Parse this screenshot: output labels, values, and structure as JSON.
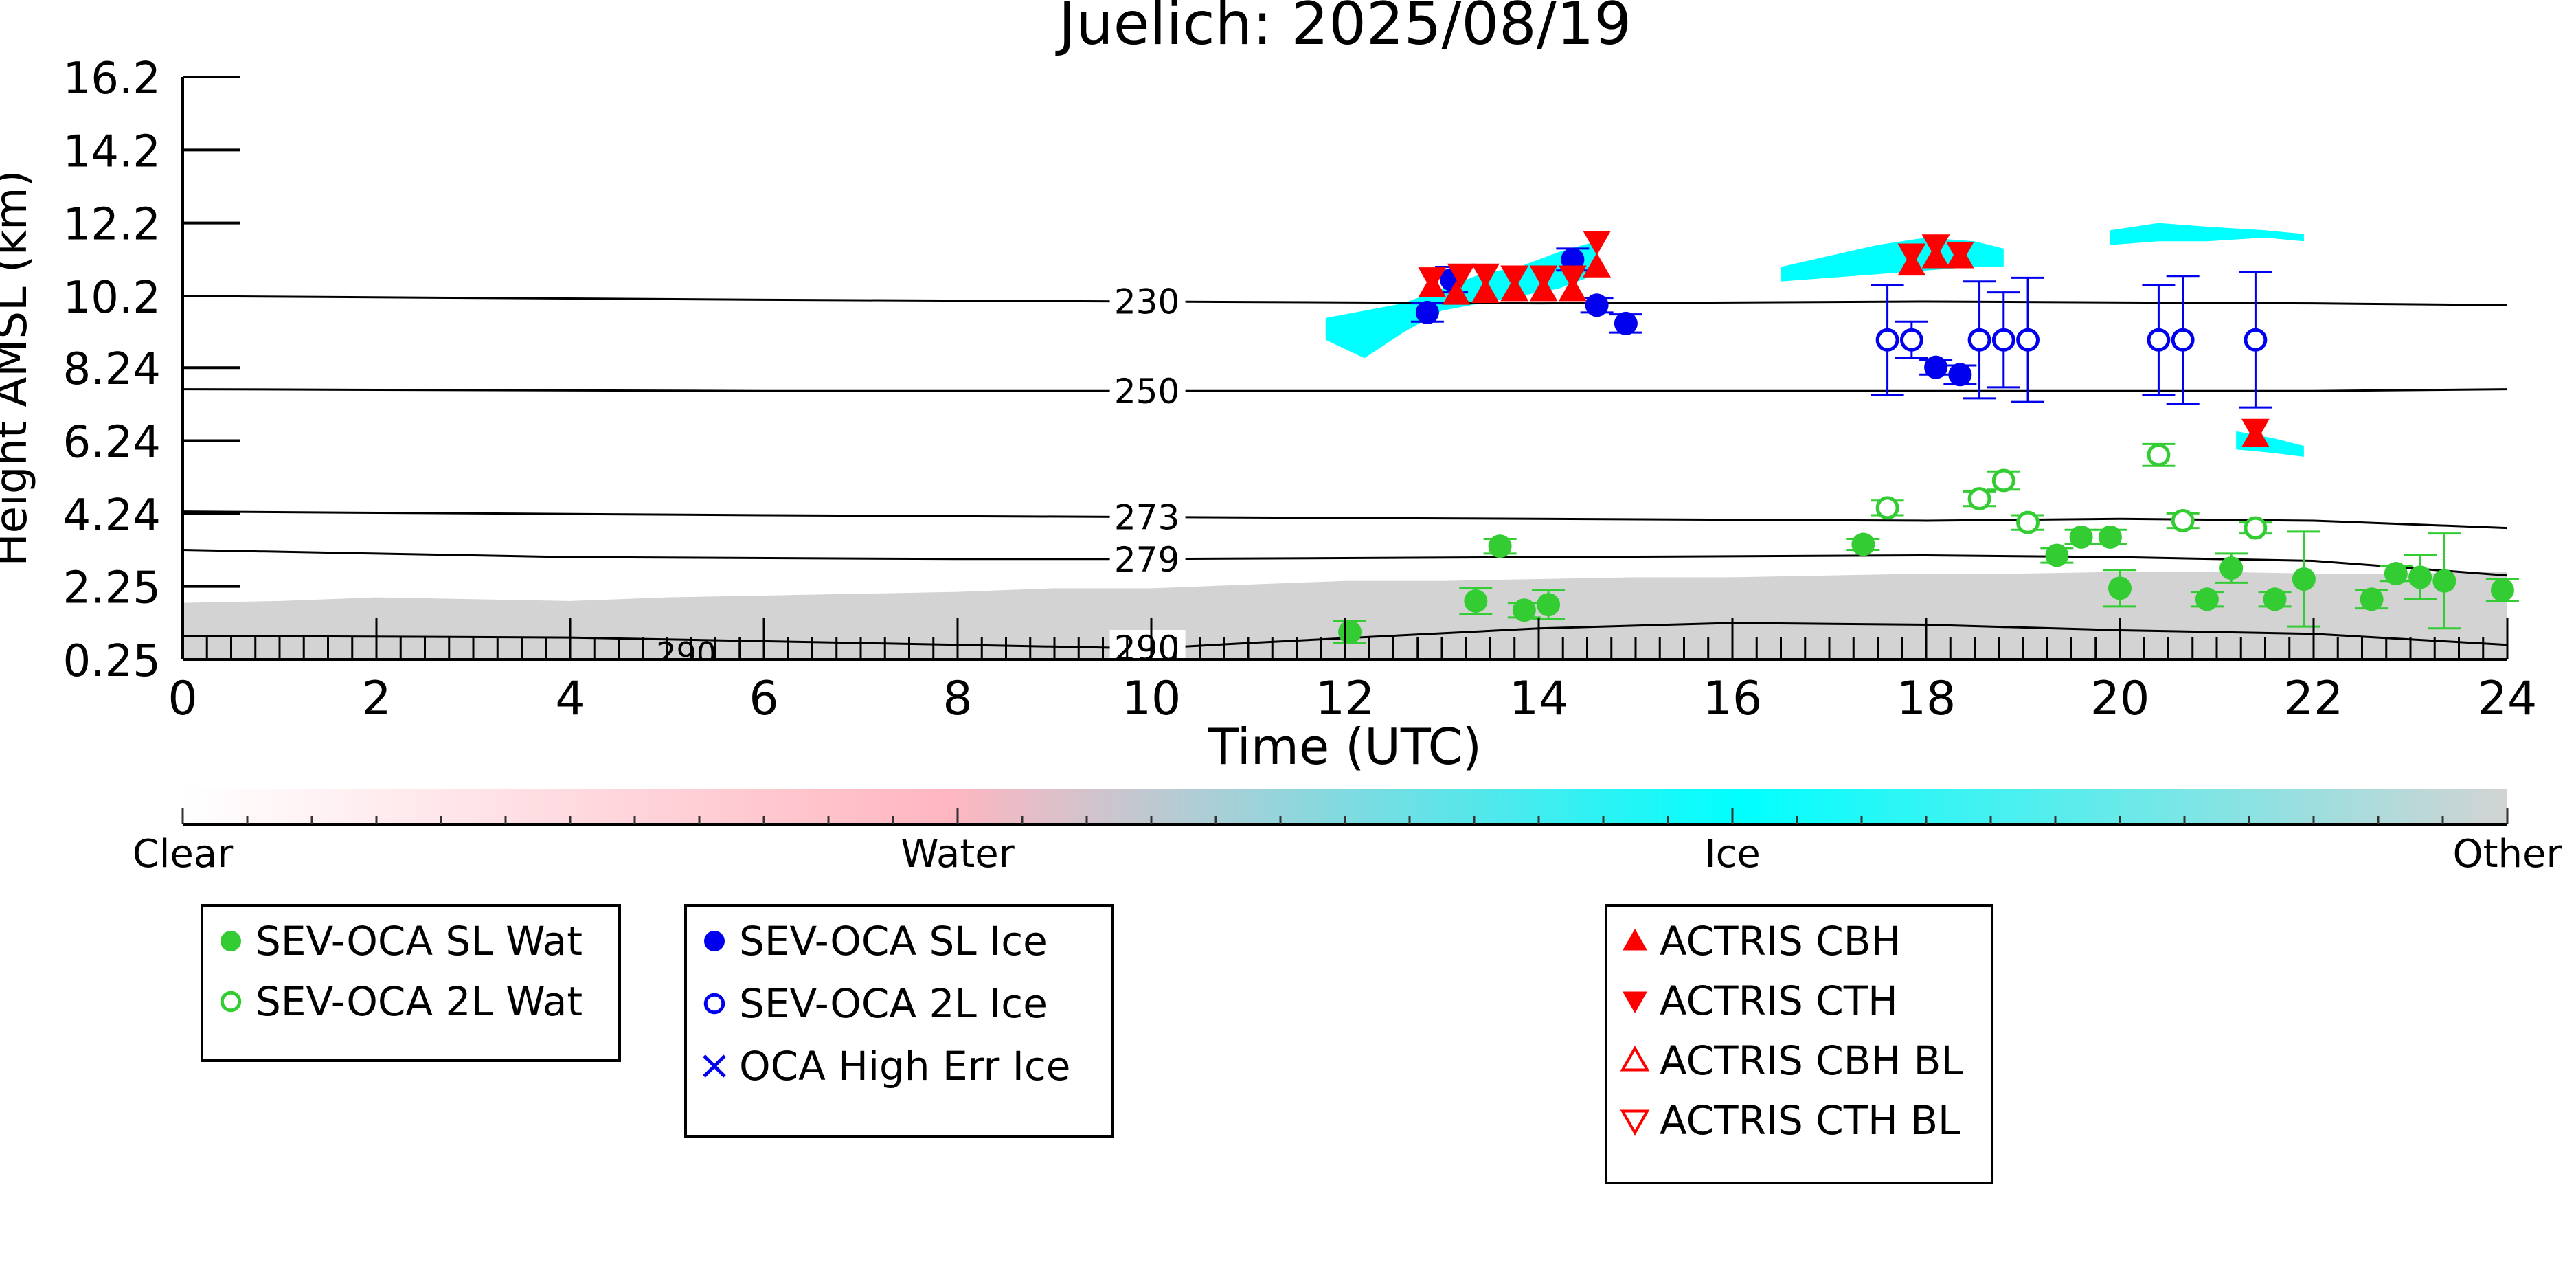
{
  "chart_data": {
    "type": "scatter",
    "title": "Juelich: 2025/08/19",
    "xlabel": "Time (UTC)",
    "ylabel": "Height AMSL (km)",
    "xlim": [
      0,
      24
    ],
    "ylim": [
      0.25,
      16.2
    ],
    "x_ticks": [
      "0",
      "2",
      "4",
      "6",
      "8",
      "10",
      "12",
      "14",
      "16",
      "18",
      "20",
      "22",
      "24"
    ],
    "x_tick_values": [
      0,
      2,
      4,
      6,
      8,
      10,
      12,
      14,
      16,
      18,
      20,
      22,
      24
    ],
    "y_ticks": [
      "16.2",
      "14.2",
      "12.2",
      "10.2",
      "8.24",
      "6.24",
      "4.24",
      "2.25",
      "0.25"
    ],
    "y_tick_values": [
      16.2,
      14.2,
      12.2,
      10.2,
      8.24,
      6.24,
      4.24,
      2.25,
      0.25
    ],
    "grid": false,
    "contours": [
      {
        "label": "230",
        "label_x": 9.6,
        "x": [
          0,
          6,
          10,
          14,
          18,
          22,
          24
        ],
        "y": [
          10.2,
          10.1,
          10.05,
          10.0,
          10.05,
          10.0,
          9.95
        ]
      },
      {
        "label": "250",
        "label_x": 9.6,
        "x": [
          0,
          6,
          10,
          14,
          18,
          22,
          24
        ],
        "y": [
          7.65,
          7.6,
          7.6,
          7.6,
          7.6,
          7.6,
          7.65
        ]
      },
      {
        "label": "273",
        "label_x": 9.6,
        "x": [
          0,
          6,
          10,
          14,
          18,
          20,
          22,
          24
        ],
        "y": [
          4.3,
          4.2,
          4.15,
          4.1,
          4.05,
          4.1,
          4.05,
          3.85
        ]
      },
      {
        "label": "279",
        "label_x": 9.6,
        "x": [
          0,
          4,
          8,
          10,
          14,
          18,
          20,
          22,
          24
        ],
        "y": [
          3.25,
          3.05,
          3.0,
          3.0,
          3.05,
          3.1,
          3.05,
          2.95,
          2.55
        ]
      },
      {
        "label": "290",
        "label_x": 9.6,
        "x": [
          0,
          4,
          8,
          10,
          11,
          14,
          16,
          18,
          20,
          22,
          24
        ],
        "y": [
          0.9,
          0.85,
          0.65,
          0.55,
          0.7,
          1.1,
          1.25,
          1.2,
          1.05,
          0.95,
          0.65
        ]
      }
    ],
    "contour_fragment_label": "290",
    "classification_fields": [
      {
        "class": "Other",
        "x": [
          0,
          1,
          2,
          3,
          4,
          5,
          6,
          7,
          8,
          9,
          10,
          11,
          12,
          13,
          14,
          15,
          16,
          17,
          18,
          19,
          20,
          21,
          22,
          23,
          24
        ],
        "top": [
          1.8,
          1.85,
          1.95,
          1.9,
          1.85,
          1.95,
          2.0,
          2.05,
          2.1,
          2.2,
          2.2,
          2.3,
          2.4,
          2.4,
          2.45,
          2.5,
          2.5,
          2.55,
          2.6,
          2.6,
          2.65,
          2.65,
          2.6,
          2.6,
          2.65
        ]
      },
      {
        "class": "Ice",
        "x": [
          11.8,
          12.2,
          12.6,
          13.0,
          13.4,
          13.8,
          14.2,
          14.6
        ],
        "top": [
          9.6,
          9.8,
          10.0,
          10.4,
          10.8,
          11.0,
          11.4,
          11.7
        ],
        "bottom": [
          9.0,
          8.5,
          9.2,
          9.8,
          10.0,
          10.2,
          10.4,
          10.8
        ]
      },
      {
        "class": "Ice",
        "x": [
          16.5,
          17.0,
          17.5,
          18.0,
          18.5,
          18.8
        ],
        "top": [
          11.0,
          11.3,
          11.6,
          11.8,
          11.7,
          11.5
        ],
        "bottom": [
          10.6,
          10.7,
          10.8,
          10.9,
          11.0,
          11.0
        ]
      },
      {
        "class": "Ice",
        "x": [
          19.9,
          20.4,
          20.9,
          21.5,
          21.9
        ],
        "top": [
          12.0,
          12.2,
          12.1,
          12.0,
          11.9
        ],
        "bottom": [
          11.6,
          11.7,
          11.7,
          11.8,
          11.7
        ]
      },
      {
        "class": "Ice",
        "x": [
          21.2,
          21.6,
          21.9
        ],
        "top": [
          6.5,
          6.3,
          6.1
        ],
        "bottom": [
          6.0,
          5.9,
          5.8
        ]
      }
    ],
    "colorbar": {
      "labels": [
        "Clear",
        "Water",
        "Ice",
        "Other"
      ],
      "stops": [
        {
          "pos": 0.0,
          "color": "#ffffff"
        },
        {
          "pos": 0.33,
          "color": "#ffb6c1"
        },
        {
          "pos": 0.67,
          "color": "#00ffff"
        },
        {
          "pos": 1.0,
          "color": "#d3d3d3"
        }
      ]
    },
    "legends": [
      {
        "entries": [
          {
            "label": "SEV-OCA SL Wat",
            "marker": "circle-filled",
            "color": "#33cc33"
          },
          {
            "label": "SEV-OCA 2L Wat",
            "marker": "circle-open",
            "color": "#33cc33"
          }
        ]
      },
      {
        "entries": [
          {
            "label": "SEV-OCA SL Ice",
            "marker": "circle-filled",
            "color": "#0000ee"
          },
          {
            "label": "SEV-OCA 2L Ice",
            "marker": "circle-open",
            "color": "#0000ee"
          },
          {
            "label": "OCA High Err Ice",
            "marker": "x",
            "color": "#0000ee"
          }
        ]
      },
      {
        "entries": [
          {
            "label": "ACTRIS CBH",
            "marker": "triangle-up-filled",
            "color": "#ff0000"
          },
          {
            "label": "ACTRIS CTH",
            "marker": "triangle-down-filled",
            "color": "#ff0000"
          },
          {
            "label": "ACTRIS CBH BL",
            "marker": "triangle-up-open",
            "color": "#ff0000"
          },
          {
            "label": "ACTRIS CTH BL",
            "marker": "triangle-down-open",
            "color": "#ff0000"
          }
        ]
      }
    ],
    "series": [
      {
        "name": "SEV-OCA SL Wat",
        "marker": "circle-filled",
        "color": "#33cc33",
        "points": [
          {
            "x": 12.05,
            "y": 1.0,
            "err": 0.3
          },
          {
            "x": 13.35,
            "y": 1.85,
            "err": 0.35
          },
          {
            "x": 13.6,
            "y": 3.35,
            "err": 0.2
          },
          {
            "x": 13.85,
            "y": 1.6,
            "err": 0.2
          },
          {
            "x": 14.1,
            "y": 1.75,
            "err": 0.4
          },
          {
            "x": 17.35,
            "y": 3.4,
            "err": 0.15
          },
          {
            "x": 19.35,
            "y": 3.1,
            "err": 0.2
          },
          {
            "x": 19.6,
            "y": 3.6,
            "err": 0.2
          },
          {
            "x": 19.9,
            "y": 3.6,
            "err": 0.2
          },
          {
            "x": 20.0,
            "y": 2.2,
            "err": 0.5
          },
          {
            "x": 20.9,
            "y": 1.9,
            "err": 0.2
          },
          {
            "x": 21.15,
            "y": 2.75,
            "err": 0.4
          },
          {
            "x": 21.6,
            "y": 1.9,
            "err": 0.2
          },
          {
            "x": 21.9,
            "y": 2.45,
            "err": 1.3
          },
          {
            "x": 22.6,
            "y": 1.9,
            "err": 0.25
          },
          {
            "x": 22.85,
            "y": 2.6,
            "err": 0.2
          },
          {
            "x": 23.1,
            "y": 2.5,
            "err": 0.6
          },
          {
            "x": 23.35,
            "y": 2.4,
            "err": 1.3
          },
          {
            "x": 23.95,
            "y": 2.15,
            "err": 0.3
          }
        ]
      },
      {
        "name": "SEV-OCA 2L Wat",
        "marker": "circle-open",
        "color": "#33cc33",
        "points": [
          {
            "x": 17.6,
            "y": 4.4,
            "err": 0.2
          },
          {
            "x": 18.55,
            "y": 4.65,
            "err": 0.2
          },
          {
            "x": 18.8,
            "y": 5.15,
            "err": 0.25
          },
          {
            "x": 19.05,
            "y": 4.0,
            "err": 0.2
          },
          {
            "x": 20.4,
            "y": 5.85,
            "err": 0.3
          },
          {
            "x": 20.65,
            "y": 4.05,
            "err": 0.2
          },
          {
            "x": 21.4,
            "y": 3.85,
            "err": 0.15
          }
        ]
      },
      {
        "name": "SEV-OCA SL Ice",
        "marker": "circle-filled",
        "color": "#0000ee",
        "points": [
          {
            "x": 12.85,
            "y": 9.75,
            "err": 0.25
          },
          {
            "x": 13.1,
            "y": 10.65,
            "err": 0.35
          },
          {
            "x": 14.35,
            "y": 11.2,
            "err": 0.3
          },
          {
            "x": 14.6,
            "y": 9.95,
            "err": 0.2
          },
          {
            "x": 14.9,
            "y": 9.45,
            "err": 0.25
          },
          {
            "x": 18.1,
            "y": 8.25,
            "err": 0.2
          },
          {
            "x": 18.35,
            "y": 8.05,
            "err": 0.25
          }
        ]
      },
      {
        "name": "SEV-OCA 2L Ice",
        "marker": "circle-open",
        "color": "#0000ee",
        "points": [
          {
            "x": 17.6,
            "y": 9.0,
            "err": 1.5
          },
          {
            "x": 17.85,
            "y": 9.0,
            "err": 0.5
          },
          {
            "x": 18.55,
            "y": 9.0,
            "err": 1.6
          },
          {
            "x": 18.8,
            "y": 9.0,
            "err": 1.3
          },
          {
            "x": 19.05,
            "y": 9.0,
            "err": 1.7
          },
          {
            "x": 20.4,
            "y": 9.0,
            "err": 1.5
          },
          {
            "x": 20.65,
            "y": 9.0,
            "err": 1.75
          },
          {
            "x": 21.4,
            "y": 9.0,
            "err": 1.85
          }
        ]
      },
      {
        "name": "ACTRIS CBH",
        "marker": "triangle-up-filled",
        "color": "#ff0000",
        "points": [
          {
            "x": 12.9,
            "y": 10.45
          },
          {
            "x": 13.15,
            "y": 10.25
          },
          {
            "x": 13.45,
            "y": 10.3
          },
          {
            "x": 13.75,
            "y": 10.35
          },
          {
            "x": 14.05,
            "y": 10.35
          },
          {
            "x": 14.35,
            "y": 10.35
          },
          {
            "x": 14.6,
            "y": 11.0
          },
          {
            "x": 17.85,
            "y": 11.05
          },
          {
            "x": 18.1,
            "y": 11.25
          },
          {
            "x": 18.35,
            "y": 11.25
          },
          {
            "x": 21.4,
            "y": 6.35
          }
        ]
      },
      {
        "name": "ACTRIS CTH",
        "marker": "triangle-down-filled",
        "color": "#ff0000",
        "points": [
          {
            "x": 12.9,
            "y": 10.7
          },
          {
            "x": 13.2,
            "y": 10.8
          },
          {
            "x": 13.45,
            "y": 10.8
          },
          {
            "x": 13.75,
            "y": 10.75
          },
          {
            "x": 14.05,
            "y": 10.75
          },
          {
            "x": 14.35,
            "y": 10.75
          },
          {
            "x": 14.6,
            "y": 11.7
          },
          {
            "x": 17.85,
            "y": 11.35
          },
          {
            "x": 18.1,
            "y": 11.6
          },
          {
            "x": 18.35,
            "y": 11.4
          },
          {
            "x": 21.4,
            "y": 6.55
          }
        ]
      },
      {
        "name": "ACTRIS CBH BL",
        "marker": "triangle-up-open",
        "color": "#ff0000",
        "points": []
      },
      {
        "name": "ACTRIS CTH BL",
        "marker": "triangle-down-open",
        "color": "#ff0000",
        "points": []
      },
      {
        "name": "OCA High Err Ice",
        "marker": "x",
        "color": "#0000ee",
        "points": []
      }
    ]
  }
}
